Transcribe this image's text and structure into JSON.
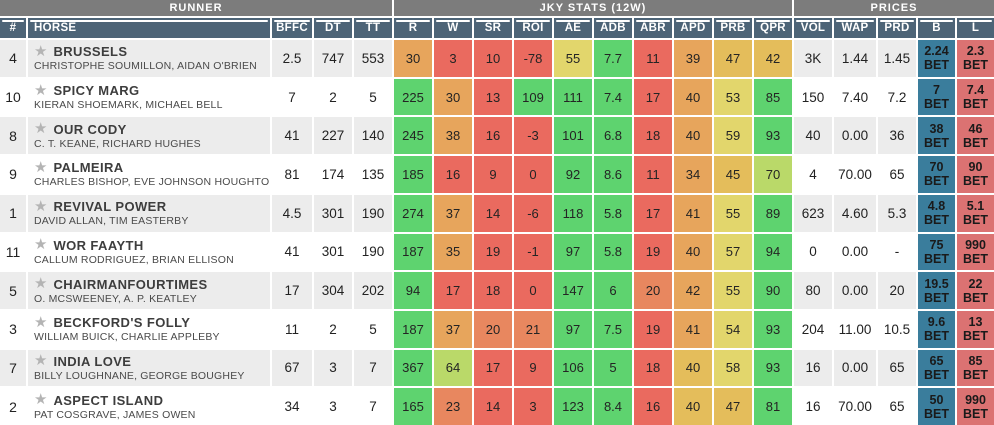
{
  "labels": {
    "bet": "BET"
  },
  "table": {
    "groups": [
      {
        "label": "RUNNER"
      },
      {
        "label": "JKY STATS (12W)"
      },
      {
        "label": "PRICES"
      }
    ],
    "columns": [
      "#",
      "HORSE",
      "BFFC",
      "DT",
      "TT",
      "R",
      "W",
      "SR",
      "ROI",
      "AE",
      "ADB",
      "ABR",
      "APD",
      "PRB",
      "QPR",
      "VOL",
      "WAP",
      "PRD",
      "B",
      "L"
    ]
  },
  "colors": {
    "g": "#5ed36f",
    "lg": "#bad969",
    "y": "#e2d66c",
    "yo": "#e4bd5b",
    "o": "#e7a55c",
    "ro": "#e8875f",
    "r": "#ea6a5f",
    "back_bet": "#3a7d9c",
    "lay_bet": "#db7272",
    "header": "#4d6477",
    "group_header": "#7c7c7c",
    "row_stripe": "#ececec"
  },
  "runners": [
    {
      "number": "4",
      "horse": "BRUSSELS",
      "people": "CHRISTOPHE SOUMILLON, AIDAN O'BRIEN",
      "bffc": "2.5",
      "dt": "747",
      "tt": "553",
      "stats": [
        {
          "v": "30",
          "c": "o"
        },
        {
          "v": "3",
          "c": "r"
        },
        {
          "v": "10",
          "c": "r"
        },
        {
          "v": "-78",
          "c": "r"
        },
        {
          "v": "55",
          "c": "y"
        },
        {
          "v": "7.7",
          "c": "g"
        },
        {
          "v": "11",
          "c": "r"
        },
        {
          "v": "39",
          "c": "o"
        },
        {
          "v": "47",
          "c": "yo"
        },
        {
          "v": "42",
          "c": "yo"
        }
      ],
      "vol": "3K",
      "wap": "1.44",
      "prd": "1.45",
      "back": "2.24",
      "lay": "2.3"
    },
    {
      "number": "10",
      "horse": "SPICY MARG",
      "people": "KIERAN SHOEMARK, MICHAEL BELL",
      "bffc": "7",
      "dt": "2",
      "tt": "5",
      "stats": [
        {
          "v": "225",
          "c": "g"
        },
        {
          "v": "30",
          "c": "o"
        },
        {
          "v": "13",
          "c": "r"
        },
        {
          "v": "109",
          "c": "g"
        },
        {
          "v": "111",
          "c": "g"
        },
        {
          "v": "7.4",
          "c": "g"
        },
        {
          "v": "17",
          "c": "r"
        },
        {
          "v": "40",
          "c": "o"
        },
        {
          "v": "53",
          "c": "y"
        },
        {
          "v": "85",
          "c": "g"
        }
      ],
      "vol": "150",
      "wap": "7.40",
      "prd": "7.2",
      "back": "7",
      "lay": "7.4"
    },
    {
      "number": "8",
      "horse": "OUR CODY",
      "people": "C. T. KEANE, RICHARD HUGHES",
      "bffc": "41",
      "dt": "227",
      "tt": "140",
      "stats": [
        {
          "v": "245",
          "c": "g"
        },
        {
          "v": "38",
          "c": "o"
        },
        {
          "v": "16",
          "c": "r"
        },
        {
          "v": "-3",
          "c": "r"
        },
        {
          "v": "101",
          "c": "g"
        },
        {
          "v": "6.8",
          "c": "g"
        },
        {
          "v": "18",
          "c": "r"
        },
        {
          "v": "40",
          "c": "o"
        },
        {
          "v": "59",
          "c": "y"
        },
        {
          "v": "93",
          "c": "g"
        }
      ],
      "vol": "40",
      "wap": "0.00",
      "prd": "36",
      "back": "38",
      "lay": "46"
    },
    {
      "number": "9",
      "horse": "PALMEIRA",
      "people": "CHARLES BISHOP, EVE JOHNSON HOUGHTON",
      "bffc": "81",
      "dt": "174",
      "tt": "135",
      "stats": [
        {
          "v": "185",
          "c": "g"
        },
        {
          "v": "16",
          "c": "r"
        },
        {
          "v": "9",
          "c": "r"
        },
        {
          "v": "0",
          "c": "r"
        },
        {
          "v": "92",
          "c": "g"
        },
        {
          "v": "8.6",
          "c": "g"
        },
        {
          "v": "11",
          "c": "r"
        },
        {
          "v": "34",
          "c": "o"
        },
        {
          "v": "45",
          "c": "yo"
        },
        {
          "v": "70",
          "c": "lg"
        }
      ],
      "vol": "4",
      "wap": "70.00",
      "prd": "65",
      "back": "70",
      "lay": "90"
    },
    {
      "number": "1",
      "horse": "REVIVAL POWER",
      "people": "DAVID ALLAN, TIM EASTERBY",
      "bffc": "4.5",
      "dt": "301",
      "tt": "190",
      "stats": [
        {
          "v": "274",
          "c": "g"
        },
        {
          "v": "37",
          "c": "o"
        },
        {
          "v": "14",
          "c": "r"
        },
        {
          "v": "-6",
          "c": "r"
        },
        {
          "v": "118",
          "c": "g"
        },
        {
          "v": "5.8",
          "c": "g"
        },
        {
          "v": "17",
          "c": "r"
        },
        {
          "v": "41",
          "c": "o"
        },
        {
          "v": "55",
          "c": "y"
        },
        {
          "v": "89",
          "c": "g"
        }
      ],
      "vol": "623",
      "wap": "4.60",
      "prd": "5.3",
      "back": "4.8",
      "lay": "5.1"
    },
    {
      "number": "11",
      "horse": "WOR FAAYTH",
      "people": "CALLUM RODRIGUEZ, BRIAN ELLISON",
      "bffc": "41",
      "dt": "301",
      "tt": "190",
      "stats": [
        {
          "v": "187",
          "c": "g"
        },
        {
          "v": "35",
          "c": "o"
        },
        {
          "v": "19",
          "c": "r"
        },
        {
          "v": "-1",
          "c": "r"
        },
        {
          "v": "97",
          "c": "g"
        },
        {
          "v": "5.8",
          "c": "g"
        },
        {
          "v": "19",
          "c": "r"
        },
        {
          "v": "40",
          "c": "o"
        },
        {
          "v": "57",
          "c": "y"
        },
        {
          "v": "94",
          "c": "g"
        }
      ],
      "vol": "0",
      "wap": "0.00",
      "prd": "-",
      "back": "75",
      "lay": "990"
    },
    {
      "number": "5",
      "horse": "CHAIRMANFOURTIMES",
      "people": "O. MCSWEENEY, A. P. KEATLEY",
      "bffc": "17",
      "dt": "304",
      "tt": "202",
      "stats": [
        {
          "v": "94",
          "c": "g"
        },
        {
          "v": "17",
          "c": "r"
        },
        {
          "v": "18",
          "c": "r"
        },
        {
          "v": "0",
          "c": "r"
        },
        {
          "v": "147",
          "c": "g"
        },
        {
          "v": "6",
          "c": "g"
        },
        {
          "v": "20",
          "c": "ro"
        },
        {
          "v": "42",
          "c": "o"
        },
        {
          "v": "55",
          "c": "y"
        },
        {
          "v": "90",
          "c": "g"
        }
      ],
      "vol": "80",
      "wap": "0.00",
      "prd": "20",
      "back": "19.5",
      "lay": "22"
    },
    {
      "number": "3",
      "horse": "BECKFORD'S FOLLY",
      "people": "WILLIAM BUICK, CHARLIE APPLEBY",
      "bffc": "11",
      "dt": "2",
      "tt": "5",
      "stats": [
        {
          "v": "187",
          "c": "g"
        },
        {
          "v": "37",
          "c": "o"
        },
        {
          "v": "20",
          "c": "ro"
        },
        {
          "v": "21",
          "c": "ro"
        },
        {
          "v": "97",
          "c": "g"
        },
        {
          "v": "7.5",
          "c": "g"
        },
        {
          "v": "19",
          "c": "r"
        },
        {
          "v": "41",
          "c": "o"
        },
        {
          "v": "54",
          "c": "y"
        },
        {
          "v": "93",
          "c": "g"
        }
      ],
      "vol": "204",
      "wap": "11.00",
      "prd": "10.5",
      "back": "9.6",
      "lay": "13"
    },
    {
      "number": "7",
      "horse": "INDIA LOVE",
      "people": "BILLY LOUGHNANE, GEORGE BOUGHEY",
      "bffc": "67",
      "dt": "3",
      "tt": "7",
      "stats": [
        {
          "v": "367",
          "c": "g"
        },
        {
          "v": "64",
          "c": "lg"
        },
        {
          "v": "17",
          "c": "r"
        },
        {
          "v": "9",
          "c": "r"
        },
        {
          "v": "106",
          "c": "g"
        },
        {
          "v": "5",
          "c": "g"
        },
        {
          "v": "18",
          "c": "r"
        },
        {
          "v": "40",
          "c": "yo"
        },
        {
          "v": "58",
          "c": "y"
        },
        {
          "v": "93",
          "c": "g"
        }
      ],
      "vol": "16",
      "wap": "0.00",
      "prd": "65",
      "back": "65",
      "lay": "85"
    },
    {
      "number": "2",
      "horse": "ASPECT ISLAND",
      "people": "PAT COSGRAVE, JAMES OWEN",
      "bffc": "34",
      "dt": "3",
      "tt": "7",
      "stats": [
        {
          "v": "165",
          "c": "g"
        },
        {
          "v": "23",
          "c": "ro"
        },
        {
          "v": "14",
          "c": "r"
        },
        {
          "v": "3",
          "c": "r"
        },
        {
          "v": "123",
          "c": "g"
        },
        {
          "v": "8.4",
          "c": "g"
        },
        {
          "v": "16",
          "c": "r"
        },
        {
          "v": "40",
          "c": "yo"
        },
        {
          "v": "47",
          "c": "yo"
        },
        {
          "v": "81",
          "c": "g"
        }
      ],
      "vol": "16",
      "wap": "70.00",
      "prd": "65",
      "back": "50",
      "lay": "990"
    }
  ]
}
